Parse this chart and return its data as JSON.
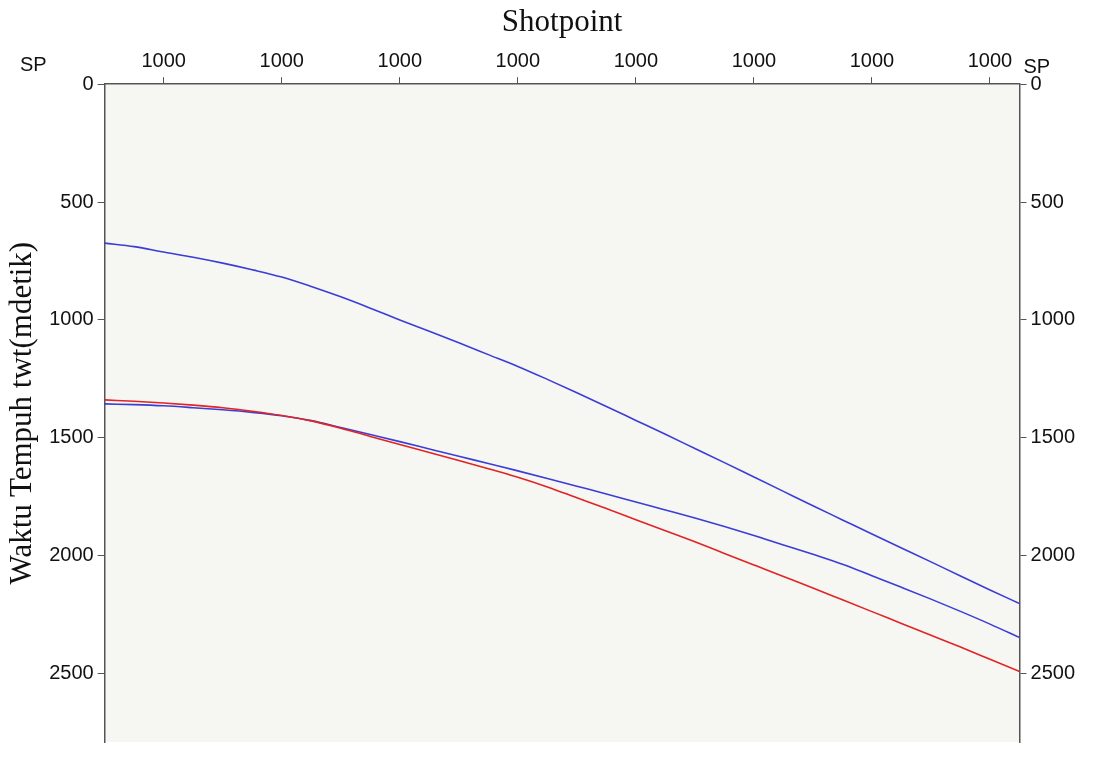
{
  "chart_data": {
    "type": "line",
    "xlabel": "Shotpoint",
    "ylabel": "Waktu Tempuh twt(mdetik)",
    "categories": [
      null,
      null,
      "1000",
      null,
      null,
      null,
      "1000",
      null,
      null,
      null,
      "1000",
      null,
      null,
      null,
      "1000",
      null,
      null,
      null,
      "1000",
      null,
      null,
      null,
      "1000",
      null,
      null,
      null,
      "1000",
      null,
      null,
      null,
      "1000",
      null
    ],
    "ylim": [
      2790,
      0
    ],
    "yticks": [
      0,
      500,
      1000,
      1500,
      2000,
      2500
    ],
    "y2lim": [
      2790,
      0
    ],
    "y2ticks": [
      0,
      500,
      1000,
      1500,
      2000,
      2500
    ],
    "legend": false,
    "marker": "none",
    "line_style": "solid",
    "annotations": [
      "SP",
      "SP"
    ],
    "series": [
      {
        "color": "#3c3cd6",
        "values": [
          674,
          689,
          712,
          734,
          759,
          787,
          818,
          858,
          902,
          950,
          1000,
          1048,
          1097,
          1147,
          1197,
          1252,
          1309,
          1367,
          1426,
          1485,
          1545,
          1605,
          1666,
          1727,
          1788,
          1848,
          1908,
          1967,
          2026,
          2086,
          2145,
          2203
        ]
      },
      {
        "color": "#e02424",
        "values": [
          1339,
          1345,
          1352,
          1361,
          1372,
          1387,
          1405,
          1428,
          1459,
          1494,
          1528,
          1562,
          1596,
          1631,
          1667,
          1708,
          1754,
          1800,
          1847,
          1894,
          1941,
          1990,
          2039,
          2088,
          2137,
          2187,
          2237,
          2287,
          2337,
          2387,
          2439,
          2491
        ]
      },
      {
        "color": "#3c3cd6",
        "values": [
          1356,
          1359,
          1364,
          1372,
          1381,
          1392,
          1406,
          1427,
          1456,
          1486,
          1516,
          1547,
          1578,
          1609,
          1640,
          1672,
          1705,
          1738,
          1772,
          1806,
          1840,
          1876,
          1914,
          1954,
          1994,
          2036,
          2085,
          2134,
          2184,
          2236,
          2290,
          2347
        ]
      }
    ]
  }
}
